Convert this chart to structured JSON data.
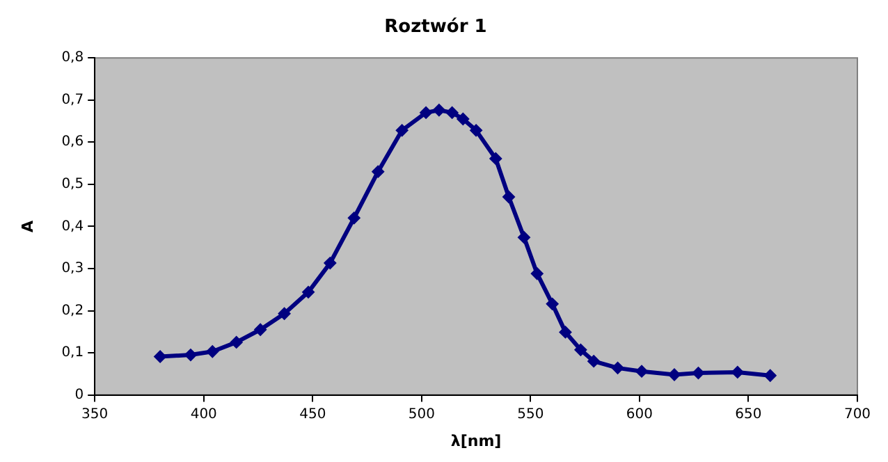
{
  "chart_data": {
    "type": "line",
    "title": "Roztwór 1",
    "xlabel": "λ[nm]",
    "ylabel": "A",
    "marker": "diamond",
    "line_style": "solid",
    "legend": false,
    "grid": false,
    "x": [
      380,
      394,
      404,
      415,
      426,
      437,
      448,
      458,
      469,
      480,
      491,
      502,
      508,
      514,
      519,
      525,
      534,
      540,
      547,
      553,
      560,
      566,
      573,
      579,
      590,
      601,
      616,
      627,
      645,
      660
    ],
    "series": [
      {
        "color": "#000080",
        "values": [
          0.091,
          0.095,
          0.103,
          0.125,
          0.155,
          0.193,
          0.244,
          0.313,
          0.42,
          0.53,
          0.628,
          0.67,
          0.676,
          0.67,
          0.655,
          0.628,
          0.561,
          0.47,
          0.374,
          0.288,
          0.216,
          0.149,
          0.107,
          0.08,
          0.064,
          0.056,
          0.048,
          0.052,
          0.054,
          0.046
        ]
      }
    ],
    "xlim": [
      350,
      700
    ],
    "xticks": [
      350,
      400,
      450,
      500,
      550,
      600,
      650,
      700
    ],
    "ylim": [
      0,
      0.8
    ],
    "yticks": [
      {
        "value": 0,
        "label": "0"
      },
      {
        "value": 0.1,
        "label": "0,1"
      },
      {
        "value": 0.2,
        "label": "0,2"
      },
      {
        "value": 0.3,
        "label": "0,3"
      },
      {
        "value": 0.4,
        "label": "0,4"
      },
      {
        "value": 0.5,
        "label": "0,5"
      },
      {
        "value": 0.6,
        "label": "0,6"
      },
      {
        "value": 0.7,
        "label": "0,7"
      },
      {
        "value": 0.8,
        "label": "0,8"
      }
    ]
  }
}
